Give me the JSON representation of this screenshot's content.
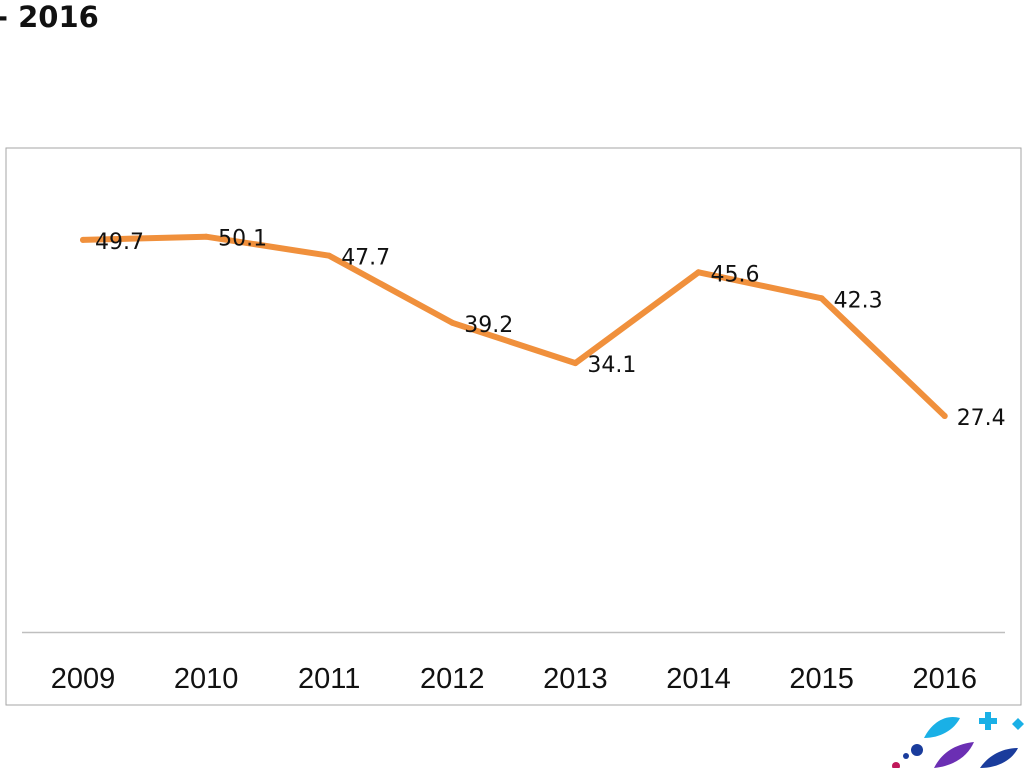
{
  "slide": {
    "title": "- 2016"
  },
  "chart_data": {
    "type": "line",
    "categories": [
      "2009",
      "2010",
      "2011",
      "2012",
      "2013",
      "2014",
      "2015",
      "2016"
    ],
    "series": [
      {
        "values": [
          49.7,
          50.1,
          47.7,
          39.2,
          34.1,
          45.6,
          42.3,
          27.4
        ],
        "color": "#f0903c"
      }
    ],
    "data_labels": [
      "49.7",
      "50.1",
      "47.7",
      "39.2",
      "34.1",
      "45.6",
      "42.3",
      "27.4"
    ],
    "title": "",
    "xlabel": "",
    "ylabel": "",
    "ylim": [
      0,
      60
    ],
    "grid": false,
    "legend": "none"
  },
  "decoration": {
    "icon": "colorful-leaves-logo-icon",
    "colors": [
      "#1ab0e6",
      "#6b2fb3",
      "#1a3c9c",
      "#c0185a"
    ]
  }
}
